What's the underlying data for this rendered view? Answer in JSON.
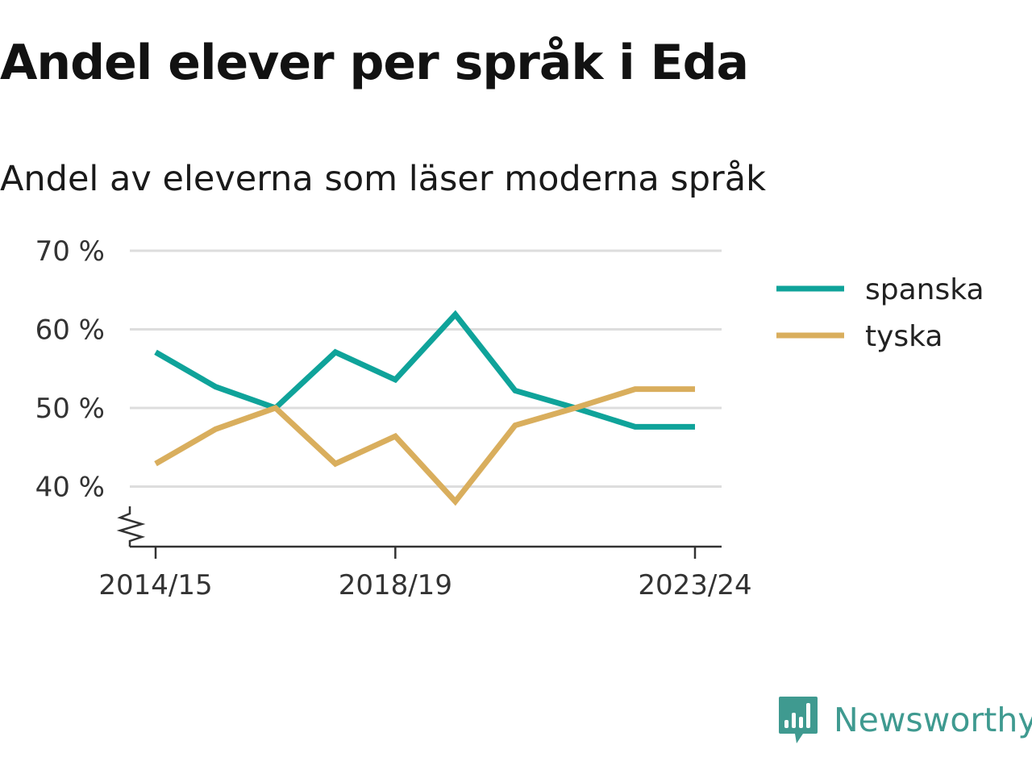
{
  "header": {
    "title": "Andel elever per språk i Eda",
    "subtitle": "Andel av eleverna som läser moderna språk"
  },
  "brand": {
    "name": "Newsworthy",
    "logo_icon": "bar-chart-speech-bubble-icon",
    "color": "#3f9a90"
  },
  "chart_data": {
    "type": "line",
    "title": "Andel elever per språk i Eda",
    "subtitle": "Andel av eleverna som läser moderna språk",
    "x": [
      "2014/15",
      "2015/16",
      "2016/17",
      "2017/18",
      "2018/19",
      "2019/20",
      "2020/21",
      "2021/22",
      "2022/23",
      "2023/24"
    ],
    "x_tick_labels": [
      "2014/15",
      "2018/19",
      "2023/24"
    ],
    "y_tick_labels": [
      "70 %",
      "60 %",
      "50 %",
      "40 %"
    ],
    "y_ticks": [
      70,
      60,
      50,
      40
    ],
    "ylim": [
      32.5,
      70
    ],
    "y_axis_break": true,
    "grid": true,
    "legend_position": "right",
    "series": [
      {
        "name": "spanska",
        "color": "#0fa39a",
        "values": [
          57.1,
          52.7,
          50.0,
          57.1,
          53.6,
          61.9,
          52.2,
          50.0,
          47.6,
          47.6
        ]
      },
      {
        "name": "tyska",
        "color": "#d9ae5d",
        "values": [
          42.9,
          47.3,
          50.0,
          42.9,
          46.4,
          38.1,
          47.8,
          50.0,
          52.4,
          52.4
        ]
      }
    ]
  }
}
